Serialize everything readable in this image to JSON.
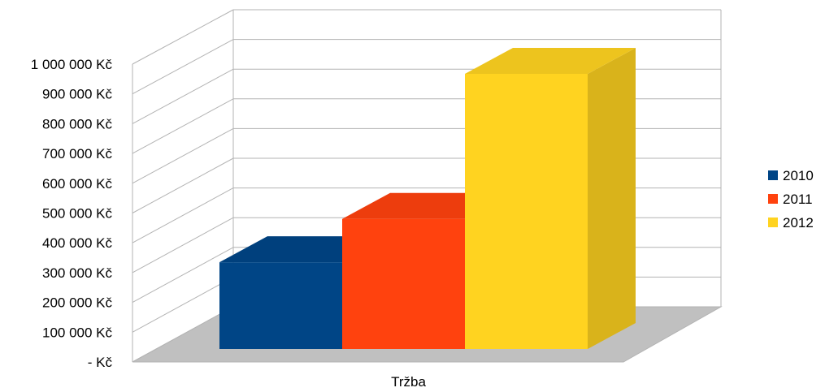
{
  "chart_data": {
    "type": "bar",
    "variant": "3d-clustered",
    "categories": [
      "Tržba"
    ],
    "series": [
      {
        "name": "2010",
        "values": [
          290000
        ],
        "color": "#004586"
      },
      {
        "name": "2011",
        "values": [
          435000
        ],
        "color": "#ff420e"
      },
      {
        "name": "2012",
        "values": [
          920000
        ],
        "color": "#ffd320"
      }
    ],
    "title": "",
    "xlabel": "",
    "ylabel": "",
    "ylim": [
      0,
      1000000
    ],
    "yticks": [
      0,
      100000,
      200000,
      300000,
      400000,
      500000,
      600000,
      700000,
      800000,
      900000,
      1000000
    ],
    "ytick_labels": [
      "- Kč",
      "100 000 Kč",
      "200 000 Kč",
      "300 000 Kč",
      "400 000 Kč",
      "500 000 Kč",
      "600 000 Kč",
      "700 000 Kč",
      "800 000 Kč",
      "900 000 Kč",
      "1 000 000 Kč"
    ],
    "grid": true,
    "legend_position": "right",
    "floor_color": "#c0c0c0",
    "grid_color": "#b3b3b3"
  }
}
